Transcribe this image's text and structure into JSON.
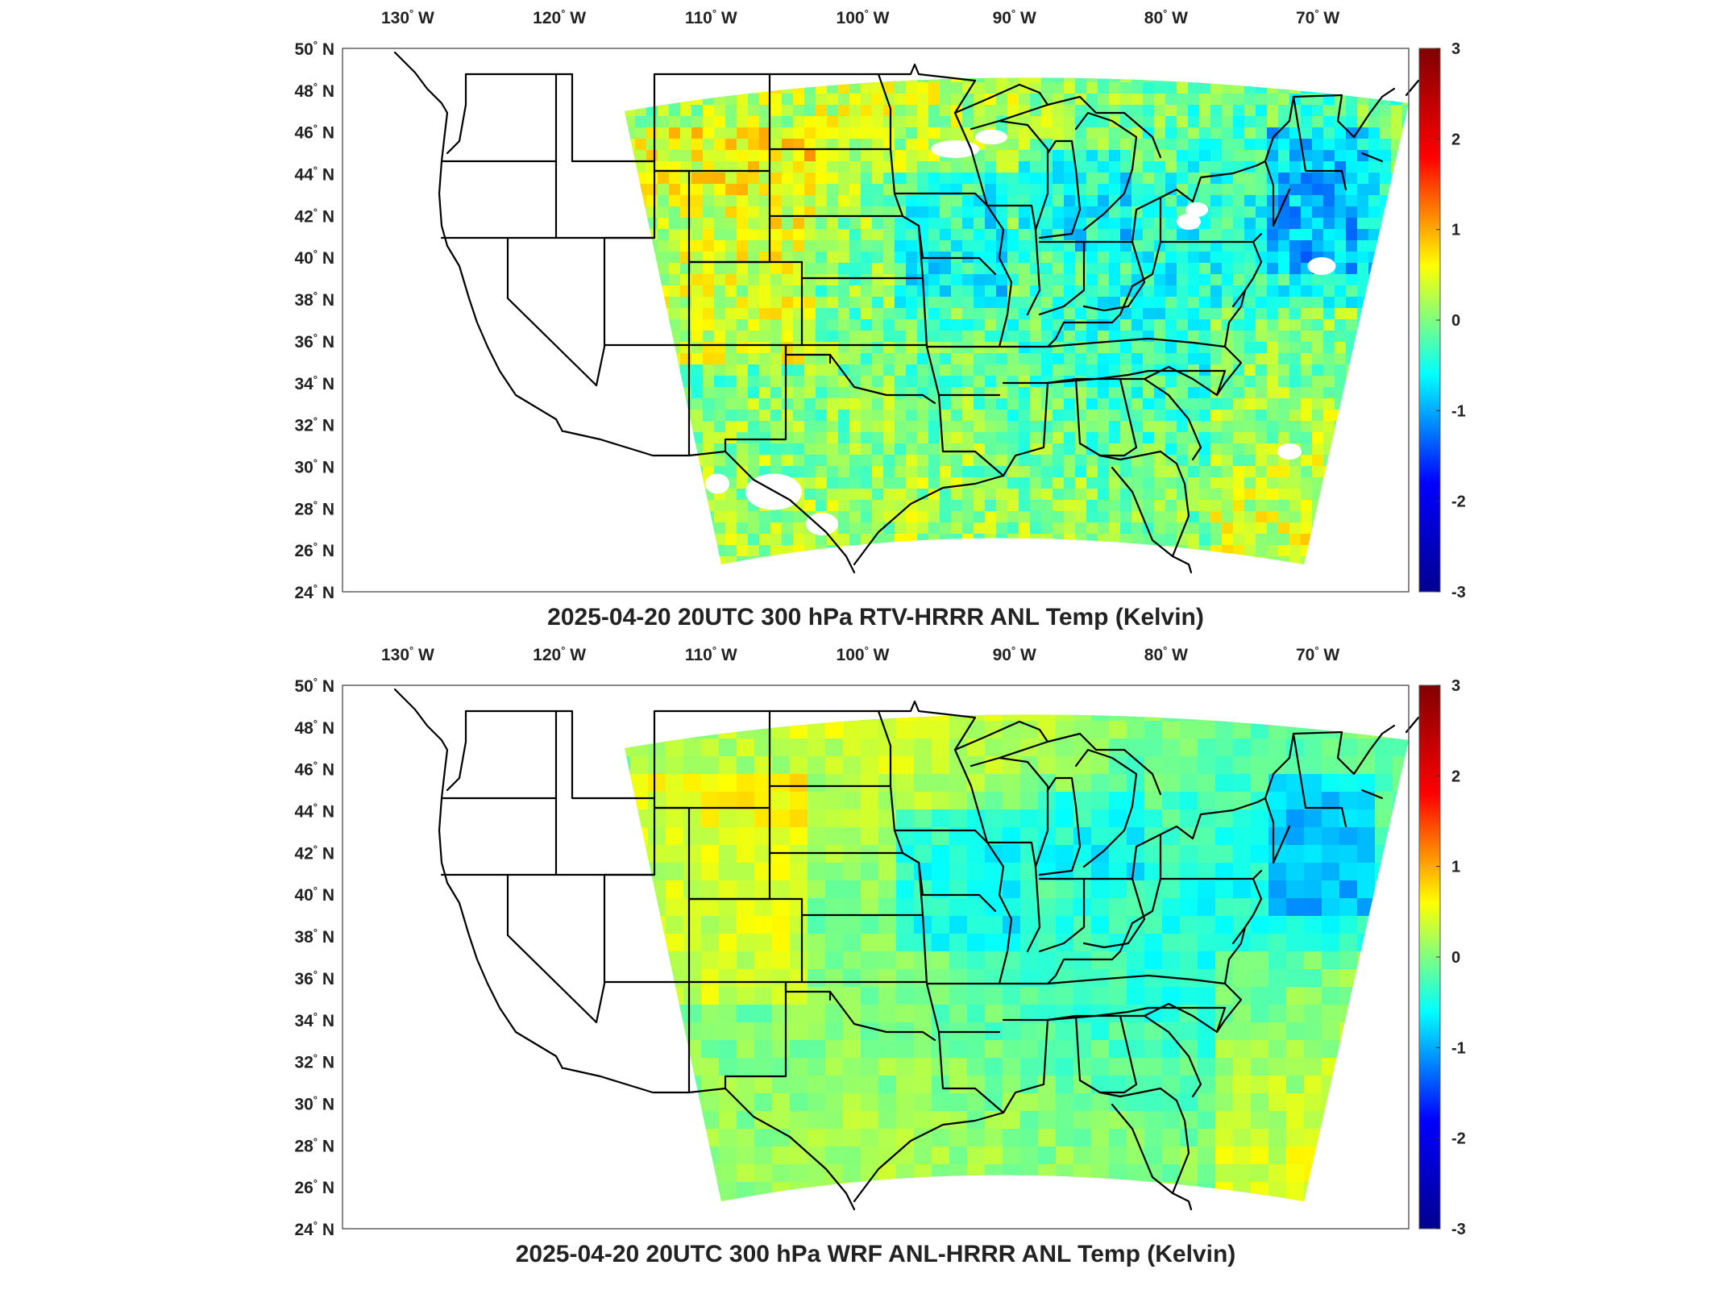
{
  "panels": [
    {
      "id": "rtv",
      "title": "2025-04-20 20UTC 300 hPa RTV-HRRR ANL Temp (Kelvin)",
      "field_style": "noisy"
    },
    {
      "id": "wrf",
      "title": "2025-04-20 20UTC 300 hPa WRF ANL-HRRR ANL Temp (Kelvin)",
      "field_style": "smooth"
    }
  ],
  "map": {
    "lon_ticks": [
      {
        "value": -130,
        "deg": "130",
        "hemi": "W"
      },
      {
        "value": -120,
        "deg": "120",
        "hemi": "W"
      },
      {
        "value": -110,
        "deg": "110",
        "hemi": "W"
      },
      {
        "value": -100,
        "deg": "100",
        "hemi": "W"
      },
      {
        "value": -90,
        "deg": "90",
        "hemi": "W"
      },
      {
        "value": -80,
        "deg": "80",
        "hemi": "W"
      },
      {
        "value": -70,
        "deg": "70",
        "hemi": "W"
      }
    ],
    "lat_ticks": [
      {
        "value": 50,
        "deg": "50",
        "hemi": "N"
      },
      {
        "value": 48,
        "deg": "48",
        "hemi": "N"
      },
      {
        "value": 46,
        "deg": "46",
        "hemi": "N"
      },
      {
        "value": 44,
        "deg": "44",
        "hemi": "N"
      },
      {
        "value": 42,
        "deg": "42",
        "hemi": "N"
      },
      {
        "value": 40,
        "deg": "40",
        "hemi": "N"
      },
      {
        "value": 38,
        "deg": "38",
        "hemi": "N"
      },
      {
        "value": 36,
        "deg": "36",
        "hemi": "N"
      },
      {
        "value": 34,
        "deg": "34",
        "hemi": "N"
      },
      {
        "value": 32,
        "deg": "32",
        "hemi": "N"
      },
      {
        "value": 30,
        "deg": "30",
        "hemi": "N"
      },
      {
        "value": 28,
        "deg": "28",
        "hemi": "N"
      },
      {
        "value": 26,
        "deg": "26",
        "hemi": "N"
      },
      {
        "value": 24,
        "deg": "24",
        "hemi": "N"
      }
    ],
    "degree_symbol": "°"
  },
  "colorbar": {
    "min": -3,
    "max": 3,
    "ticks": [
      "3",
      "2",
      "1",
      "0",
      "-1",
      "-2",
      "-3"
    ],
    "colormap": "jet",
    "colors": [
      "#00008f",
      "#0000ff",
      "#00ffff",
      "#ffff00",
      "#ff0000",
      "#800000"
    ]
  },
  "colors": {
    "field_base": "#5fe0a8",
    "border_lines": "#000000"
  }
}
